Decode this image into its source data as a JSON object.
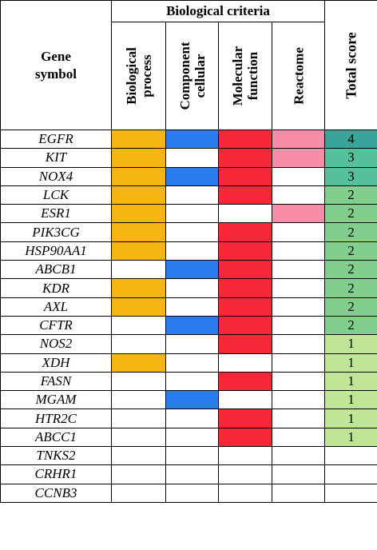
{
  "header": {
    "gene_symbol": [
      "Gene",
      "symbol"
    ],
    "biological_criteria": "Biological criteria",
    "criteria": [
      [
        "Biological",
        "process"
      ],
      [
        "Component",
        "cellular"
      ],
      [
        "Molecular",
        "function"
      ],
      [
        "Reactome"
      ]
    ],
    "total_score": "Total score"
  },
  "colors": {
    "biological_process": "#f7b512",
    "component_cellular": "#2b7cf0",
    "molecular_function": "#f42836",
    "reactome": "#f98ca8",
    "score_4": "#3aa39a",
    "score_3": "#56bf9c",
    "score_2": "#80cf8c",
    "score_1": "#bfe695"
  },
  "rows": [
    {
      "gene": "EGFR",
      "bio": true,
      "cell": true,
      "mol": true,
      "rea": true,
      "score": "4"
    },
    {
      "gene": "KIT",
      "bio": true,
      "cell": false,
      "mol": true,
      "rea": true,
      "score": "3"
    },
    {
      "gene": "NOX4",
      "bio": true,
      "cell": true,
      "mol": true,
      "rea": false,
      "score": "3"
    },
    {
      "gene": "LCK",
      "bio": true,
      "cell": false,
      "mol": true,
      "rea": false,
      "score": "2"
    },
    {
      "gene": "ESR1",
      "bio": true,
      "cell": false,
      "mol": false,
      "rea": true,
      "score": "2"
    },
    {
      "gene": "PIK3CG",
      "bio": true,
      "cell": false,
      "mol": true,
      "rea": false,
      "score": "2"
    },
    {
      "gene": "HSP90AA1",
      "bio": true,
      "cell": false,
      "mol": true,
      "rea": false,
      "score": "2"
    },
    {
      "gene": "ABCB1",
      "bio": false,
      "cell": true,
      "mol": true,
      "rea": false,
      "score": "2"
    },
    {
      "gene": "KDR",
      "bio": true,
      "cell": false,
      "mol": true,
      "rea": false,
      "score": "2"
    },
    {
      "gene": "AXL",
      "bio": true,
      "cell": false,
      "mol": true,
      "rea": false,
      "score": "2"
    },
    {
      "gene": "CFTR",
      "bio": false,
      "cell": true,
      "mol": true,
      "rea": false,
      "score": "2"
    },
    {
      "gene": "NOS2",
      "bio": false,
      "cell": false,
      "mol": true,
      "rea": false,
      "score": "1"
    },
    {
      "gene": "XDH",
      "bio": true,
      "cell": false,
      "mol": false,
      "rea": false,
      "score": "1"
    },
    {
      "gene": "FASN",
      "bio": false,
      "cell": false,
      "mol": true,
      "rea": false,
      "score": "1"
    },
    {
      "gene": "MGAM",
      "bio": false,
      "cell": true,
      "mol": false,
      "rea": false,
      "score": "1"
    },
    {
      "gene": "HTR2C",
      "bio": false,
      "cell": false,
      "mol": true,
      "rea": false,
      "score": "1"
    },
    {
      "gene": "ABCC1",
      "bio": false,
      "cell": false,
      "mol": true,
      "rea": false,
      "score": "1"
    },
    {
      "gene": "TNKS2",
      "bio": false,
      "cell": false,
      "mol": false,
      "rea": false,
      "score": ""
    },
    {
      "gene": "CRHR1",
      "bio": false,
      "cell": false,
      "mol": false,
      "rea": false,
      "score": ""
    },
    {
      "gene": "CCNB3",
      "bio": false,
      "cell": false,
      "mol": false,
      "rea": false,
      "score": ""
    }
  ]
}
